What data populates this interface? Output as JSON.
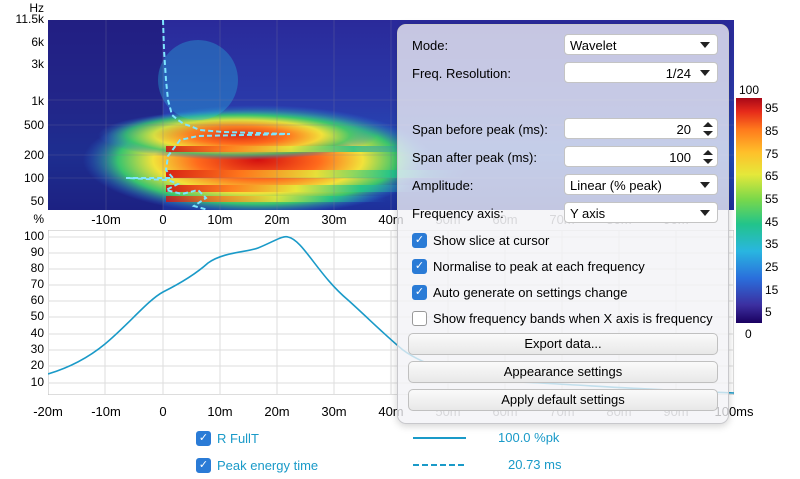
{
  "spectrogram": {
    "y_unit": "Hz",
    "y_ticks": [
      "11.5k",
      "6k",
      "3k",
      "1k",
      "500",
      "200",
      "100",
      "50",
      "%"
    ],
    "x_ticks": [
      "-10m",
      "0",
      "10m",
      "20m",
      "30m",
      "40m",
      "50m",
      "60m",
      "70m",
      "80m",
      "90m"
    ]
  },
  "colorbar": {
    "ticks": [
      "100",
      "95",
      "85",
      "75",
      "65",
      "55",
      "45",
      "35",
      "25",
      "15",
      "5",
      "0"
    ],
    "colors": [
      "#1a0060",
      "#3c2fa0",
      "#2a6fdc",
      "#29b6e0",
      "#22c48a",
      "#7ad84a",
      "#e5e83a",
      "#ffbf2a",
      "#ff7a1c",
      "#e62a1a",
      "#a80818"
    ]
  },
  "slice_plot": {
    "y_ticks": [
      "100",
      "90",
      "80",
      "70",
      "60",
      "50",
      "40",
      "30",
      "20",
      "10"
    ],
    "x_ticks": [
      "-20m",
      "-10m",
      "0",
      "10m",
      "20m",
      "30m",
      "40m",
      "50m",
      "60m",
      "70m",
      "80m",
      "90m",
      "100ms"
    ],
    "curve_color": "#1a9ac8"
  },
  "legend": [
    {
      "label": "R FullT",
      "value": "100.0 %pk",
      "line": "solid",
      "checked": true
    },
    {
      "label": "Peak energy time",
      "value": "20.73 ms",
      "line": "dashed",
      "checked": true
    }
  ],
  "panel": {
    "mode_label": "Mode:",
    "mode_value": "Wavelet",
    "freqres_label": "Freq. Resolution:",
    "freqres_value": "1/24",
    "span_before_label": "Span before peak (ms):",
    "span_before_value": "20",
    "span_after_label": "Span after peak (ms):",
    "span_after_value": "100",
    "amplitude_label": "Amplitude:",
    "amplitude_value": "Linear (% peak)",
    "freqaxis_label": "Frequency axis:",
    "freqaxis_value": "Y axis",
    "checkboxes": [
      {
        "label": "Show slice at cursor",
        "checked": true
      },
      {
        "label": "Normalise to peak at each frequency",
        "checked": true
      },
      {
        "label": "Auto generate on settings change",
        "checked": true
      },
      {
        "label": "Show frequency bands when X axis is frequency",
        "checked": false
      }
    ],
    "export_label": "Export data...",
    "appearance_label": "Appearance settings",
    "defaults_label": "Apply default settings"
  }
}
